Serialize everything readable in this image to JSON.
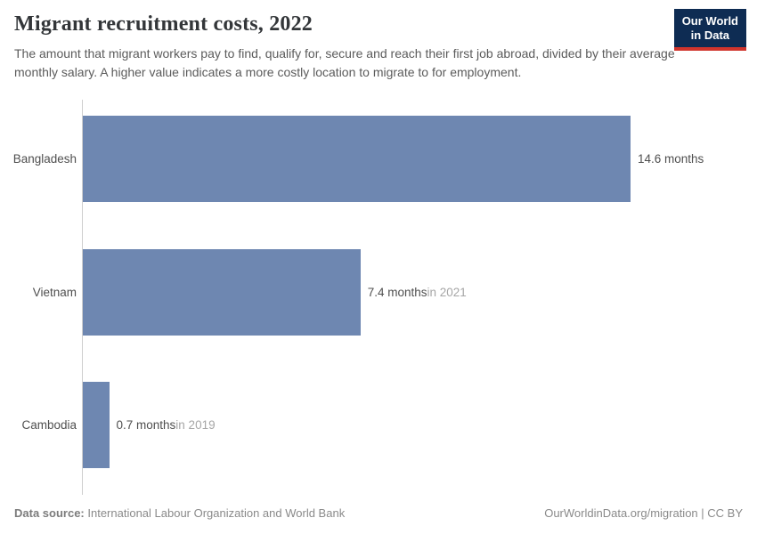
{
  "header": {
    "title": "Migrant recruitment costs, 2022",
    "subtitle": "The amount that migrant workers pay to find, qualify for, secure and reach their first job abroad, divided by their average monthly salary. A higher value indicates a more costly location to migrate to for employment.",
    "logo": {
      "line1": "Our World",
      "line2": "in Data"
    }
  },
  "chart_data": {
    "type": "bar",
    "orientation": "horizontal",
    "title": "Migrant recruitment costs, 2022",
    "categories": [
      "Bangladesh",
      "Vietnam",
      "Cambodia"
    ],
    "values": [
      14.6,
      7.4,
      0.7
    ],
    "unit": "months",
    "value_labels": [
      "14.6 months",
      "7.4 months",
      "0.7 months"
    ],
    "year_notes": [
      "",
      "in 2021",
      "in 2019"
    ],
    "xlim": [
      0,
      14.6
    ],
    "grid": false,
    "legend": "none",
    "bar_color": "#6e87b1"
  },
  "footer": {
    "source_label": "Data source:",
    "source_text": " International Labour Organization and World Bank",
    "right_text": "OurWorldinData.org/migration | CC BY"
  },
  "colors": {
    "bar": "#6e87b1",
    "axis_line": "#cfcfcf",
    "logo_navy": "#0e2c53",
    "logo_red": "#d0342c",
    "title_text": "#333639",
    "muted_text": "#a6a6a6"
  }
}
